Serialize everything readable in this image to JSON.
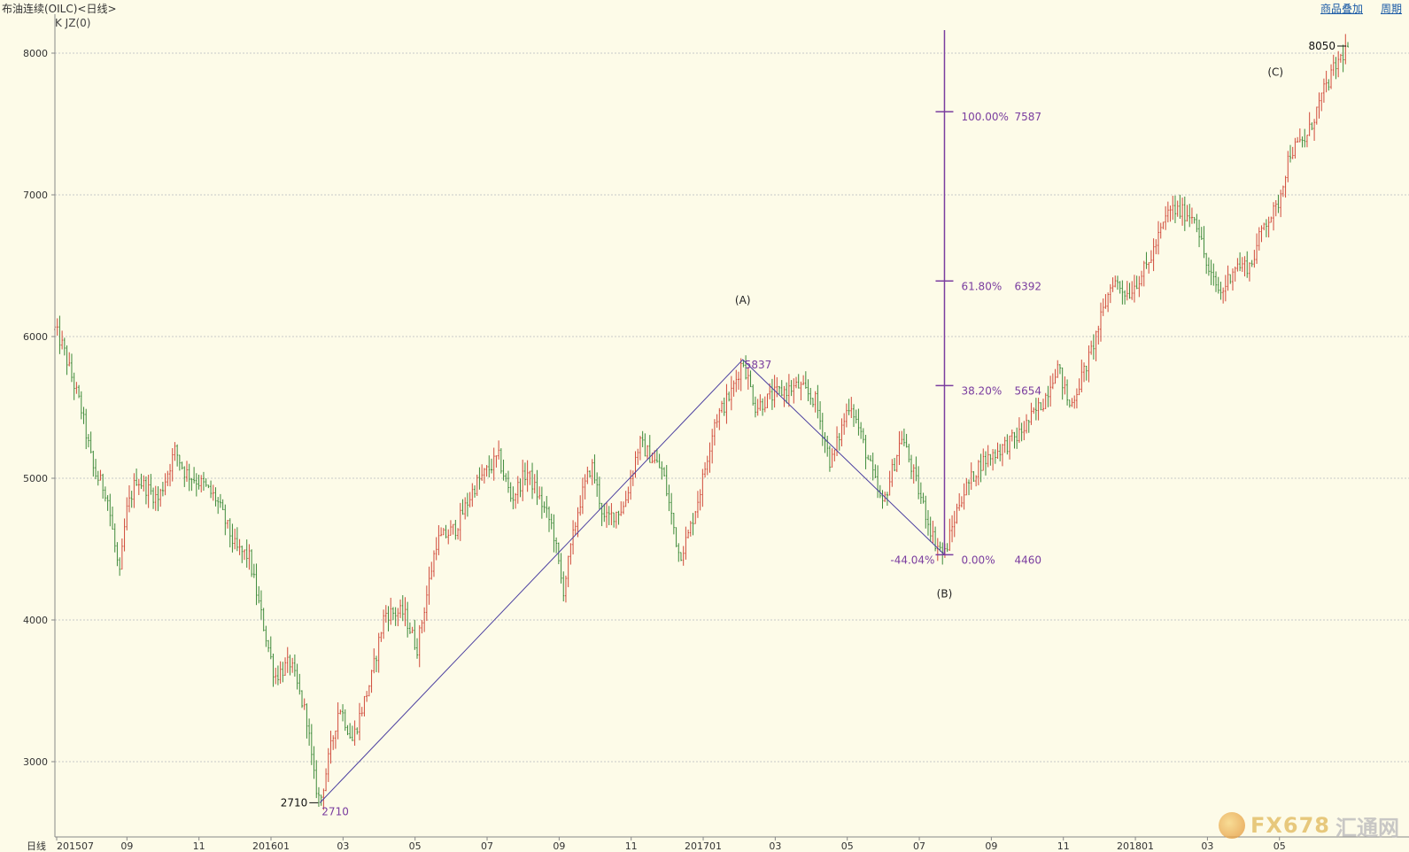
{
  "header": {
    "title": "布油连续(OILC)<日线>",
    "indicator": "K JZ(0)",
    "overlay_button": "商品叠加",
    "period_button": "周期"
  },
  "watermark": {
    "brand": "FX678",
    "cn": "汇通网"
  },
  "colors": {
    "up": "#d04a3a",
    "down": "#3e8a3a",
    "fib": "#7a3d9f",
    "grid": "#c8c8c8"
  },
  "chart_data": {
    "type": "candlestick",
    "period_label": "日线",
    "ylim": [
      2590,
      8350
    ],
    "y_ticks": [
      3000,
      4000,
      5000,
      6000,
      7000,
      8000
    ],
    "x_tick_labels": [
      "201507",
      "09",
      "11",
      "201601",
      "03",
      "05",
      "07",
      "09",
      "11",
      "201701",
      "03",
      "05",
      "07",
      "09",
      "11",
      "201801",
      "03",
      "05"
    ],
    "x_range": [
      "2015-07",
      "2018-05"
    ],
    "price_path": [
      {
        "t": 0.0,
        "v": 6050
      },
      {
        "t": 0.006,
        "v": 5930
      },
      {
        "t": 0.02,
        "v": 5500
      },
      {
        "t": 0.03,
        "v": 5050
      },
      {
        "t": 0.04,
        "v": 4900
      },
      {
        "t": 0.05,
        "v": 4300
      },
      {
        "t": 0.055,
        "v": 4750
      },
      {
        "t": 0.063,
        "v": 5000
      },
      {
        "t": 0.08,
        "v": 4850
      },
      {
        "t": 0.093,
        "v": 5200
      },
      {
        "t": 0.1,
        "v": 5050
      },
      {
        "t": 0.115,
        "v": 4950
      },
      {
        "t": 0.125,
        "v": 4850
      },
      {
        "t": 0.14,
        "v": 4500
      },
      {
        "t": 0.15,
        "v": 4450
      },
      {
        "t": 0.158,
        "v": 4100
      },
      {
        "t": 0.17,
        "v": 3600
      },
      {
        "t": 0.182,
        "v": 3700
      },
      {
        "t": 0.195,
        "v": 3300
      },
      {
        "t": 0.2,
        "v": 2900
      },
      {
        "t": 0.205,
        "v": 2710
      },
      {
        "t": 0.22,
        "v": 3400
      },
      {
        "t": 0.23,
        "v": 3150
      },
      {
        "t": 0.245,
        "v": 3600
      },
      {
        "t": 0.255,
        "v": 4050
      },
      {
        "t": 0.27,
        "v": 4050
      },
      {
        "t": 0.28,
        "v": 3800
      },
      {
        "t": 0.295,
        "v": 4550
      },
      {
        "t": 0.31,
        "v": 4650
      },
      {
        "t": 0.325,
        "v": 4950
      },
      {
        "t": 0.343,
        "v": 5150
      },
      {
        "t": 0.353,
        "v": 4850
      },
      {
        "t": 0.365,
        "v": 5050
      },
      {
        "t": 0.385,
        "v": 4650
      },
      {
        "t": 0.393,
        "v": 4200
      },
      {
        "t": 0.405,
        "v": 4800
      },
      {
        "t": 0.415,
        "v": 5100
      },
      {
        "t": 0.425,
        "v": 4700
      },
      {
        "t": 0.44,
        "v": 4800
      },
      {
        "t": 0.452,
        "v": 5250
      },
      {
        "t": 0.47,
        "v": 5050
      },
      {
        "t": 0.483,
        "v": 4450
      },
      {
        "t": 0.49,
        "v": 4600
      },
      {
        "t": 0.5,
        "v": 4950
      },
      {
        "t": 0.51,
        "v": 5400
      },
      {
        "t": 0.523,
        "v": 5600
      },
      {
        "t": 0.532,
        "v": 5837
      },
      {
        "t": 0.542,
        "v": 5500
      },
      {
        "t": 0.558,
        "v": 5600
      },
      {
        "t": 0.575,
        "v": 5650
      },
      {
        "t": 0.588,
        "v": 5550
      },
      {
        "t": 0.6,
        "v": 5100
      },
      {
        "t": 0.615,
        "v": 5550
      },
      {
        "t": 0.625,
        "v": 5250
      },
      {
        "t": 0.64,
        "v": 4800
      },
      {
        "t": 0.655,
        "v": 5300
      },
      {
        "t": 0.665,
        "v": 5000
      },
      {
        "t": 0.68,
        "v": 4560
      },
      {
        "t": 0.688,
        "v": 4460
      },
      {
        "t": 0.7,
        "v": 4850
      },
      {
        "t": 0.715,
        "v": 5100
      },
      {
        "t": 0.73,
        "v": 5200
      },
      {
        "t": 0.745,
        "v": 5300
      },
      {
        "t": 0.765,
        "v": 5550
      },
      {
        "t": 0.775,
        "v": 5800
      },
      {
        "t": 0.785,
        "v": 5500
      },
      {
        "t": 0.8,
        "v": 5850
      },
      {
        "t": 0.818,
        "v": 6400
      },
      {
        "t": 0.83,
        "v": 6300
      },
      {
        "t": 0.845,
        "v": 6500
      },
      {
        "t": 0.862,
        "v": 6900
      },
      {
        "t": 0.882,
        "v": 6850
      },
      {
        "t": 0.892,
        "v": 6450
      },
      {
        "t": 0.902,
        "v": 6300
      },
      {
        "t": 0.912,
        "v": 6500
      },
      {
        "t": 0.925,
        "v": 6500
      },
      {
        "t": 0.935,
        "v": 6800
      },
      {
        "t": 0.945,
        "v": 6900
      },
      {
        "t": 0.955,
        "v": 7300
      },
      {
        "t": 0.968,
        "v": 7400
      },
      {
        "t": 0.98,
        "v": 7700
      },
      {
        "t": 0.99,
        "v": 7900
      },
      {
        "t": 1.0,
        "v": 8050
      }
    ],
    "wave_line": [
      {
        "t": 0.205,
        "v": 2710
      },
      {
        "t": 0.532,
        "v": 5837
      },
      {
        "t": 0.688,
        "v": 4460
      }
    ],
    "fibonacci": {
      "t": 0.688,
      "levels": [
        {
          "pct": "100.00%",
          "value": 7587
        },
        {
          "pct": "61.80%",
          "value": 6392
        },
        {
          "pct": "38.20%",
          "value": 5654
        },
        {
          "pct": "0.00%",
          "value": 4460
        }
      ],
      "retrace_label": "-44.04%"
    },
    "annotations": [
      {
        "text": "(A)",
        "t": 0.532,
        "v": 6230
      },
      {
        "text": "(B)",
        "t": 0.688,
        "v": 4160
      },
      {
        "text": "(C)",
        "t": 0.944,
        "v": 7840
      }
    ],
    "price_labels": [
      {
        "text": "2710",
        "t": 0.205,
        "v": 2710,
        "role": "low"
      },
      {
        "text": "5837",
        "t": 0.532,
        "v": 5837,
        "role": "swing-high"
      },
      {
        "text": "8050",
        "t": 1.0,
        "v": 8050,
        "role": "high"
      }
    ]
  }
}
